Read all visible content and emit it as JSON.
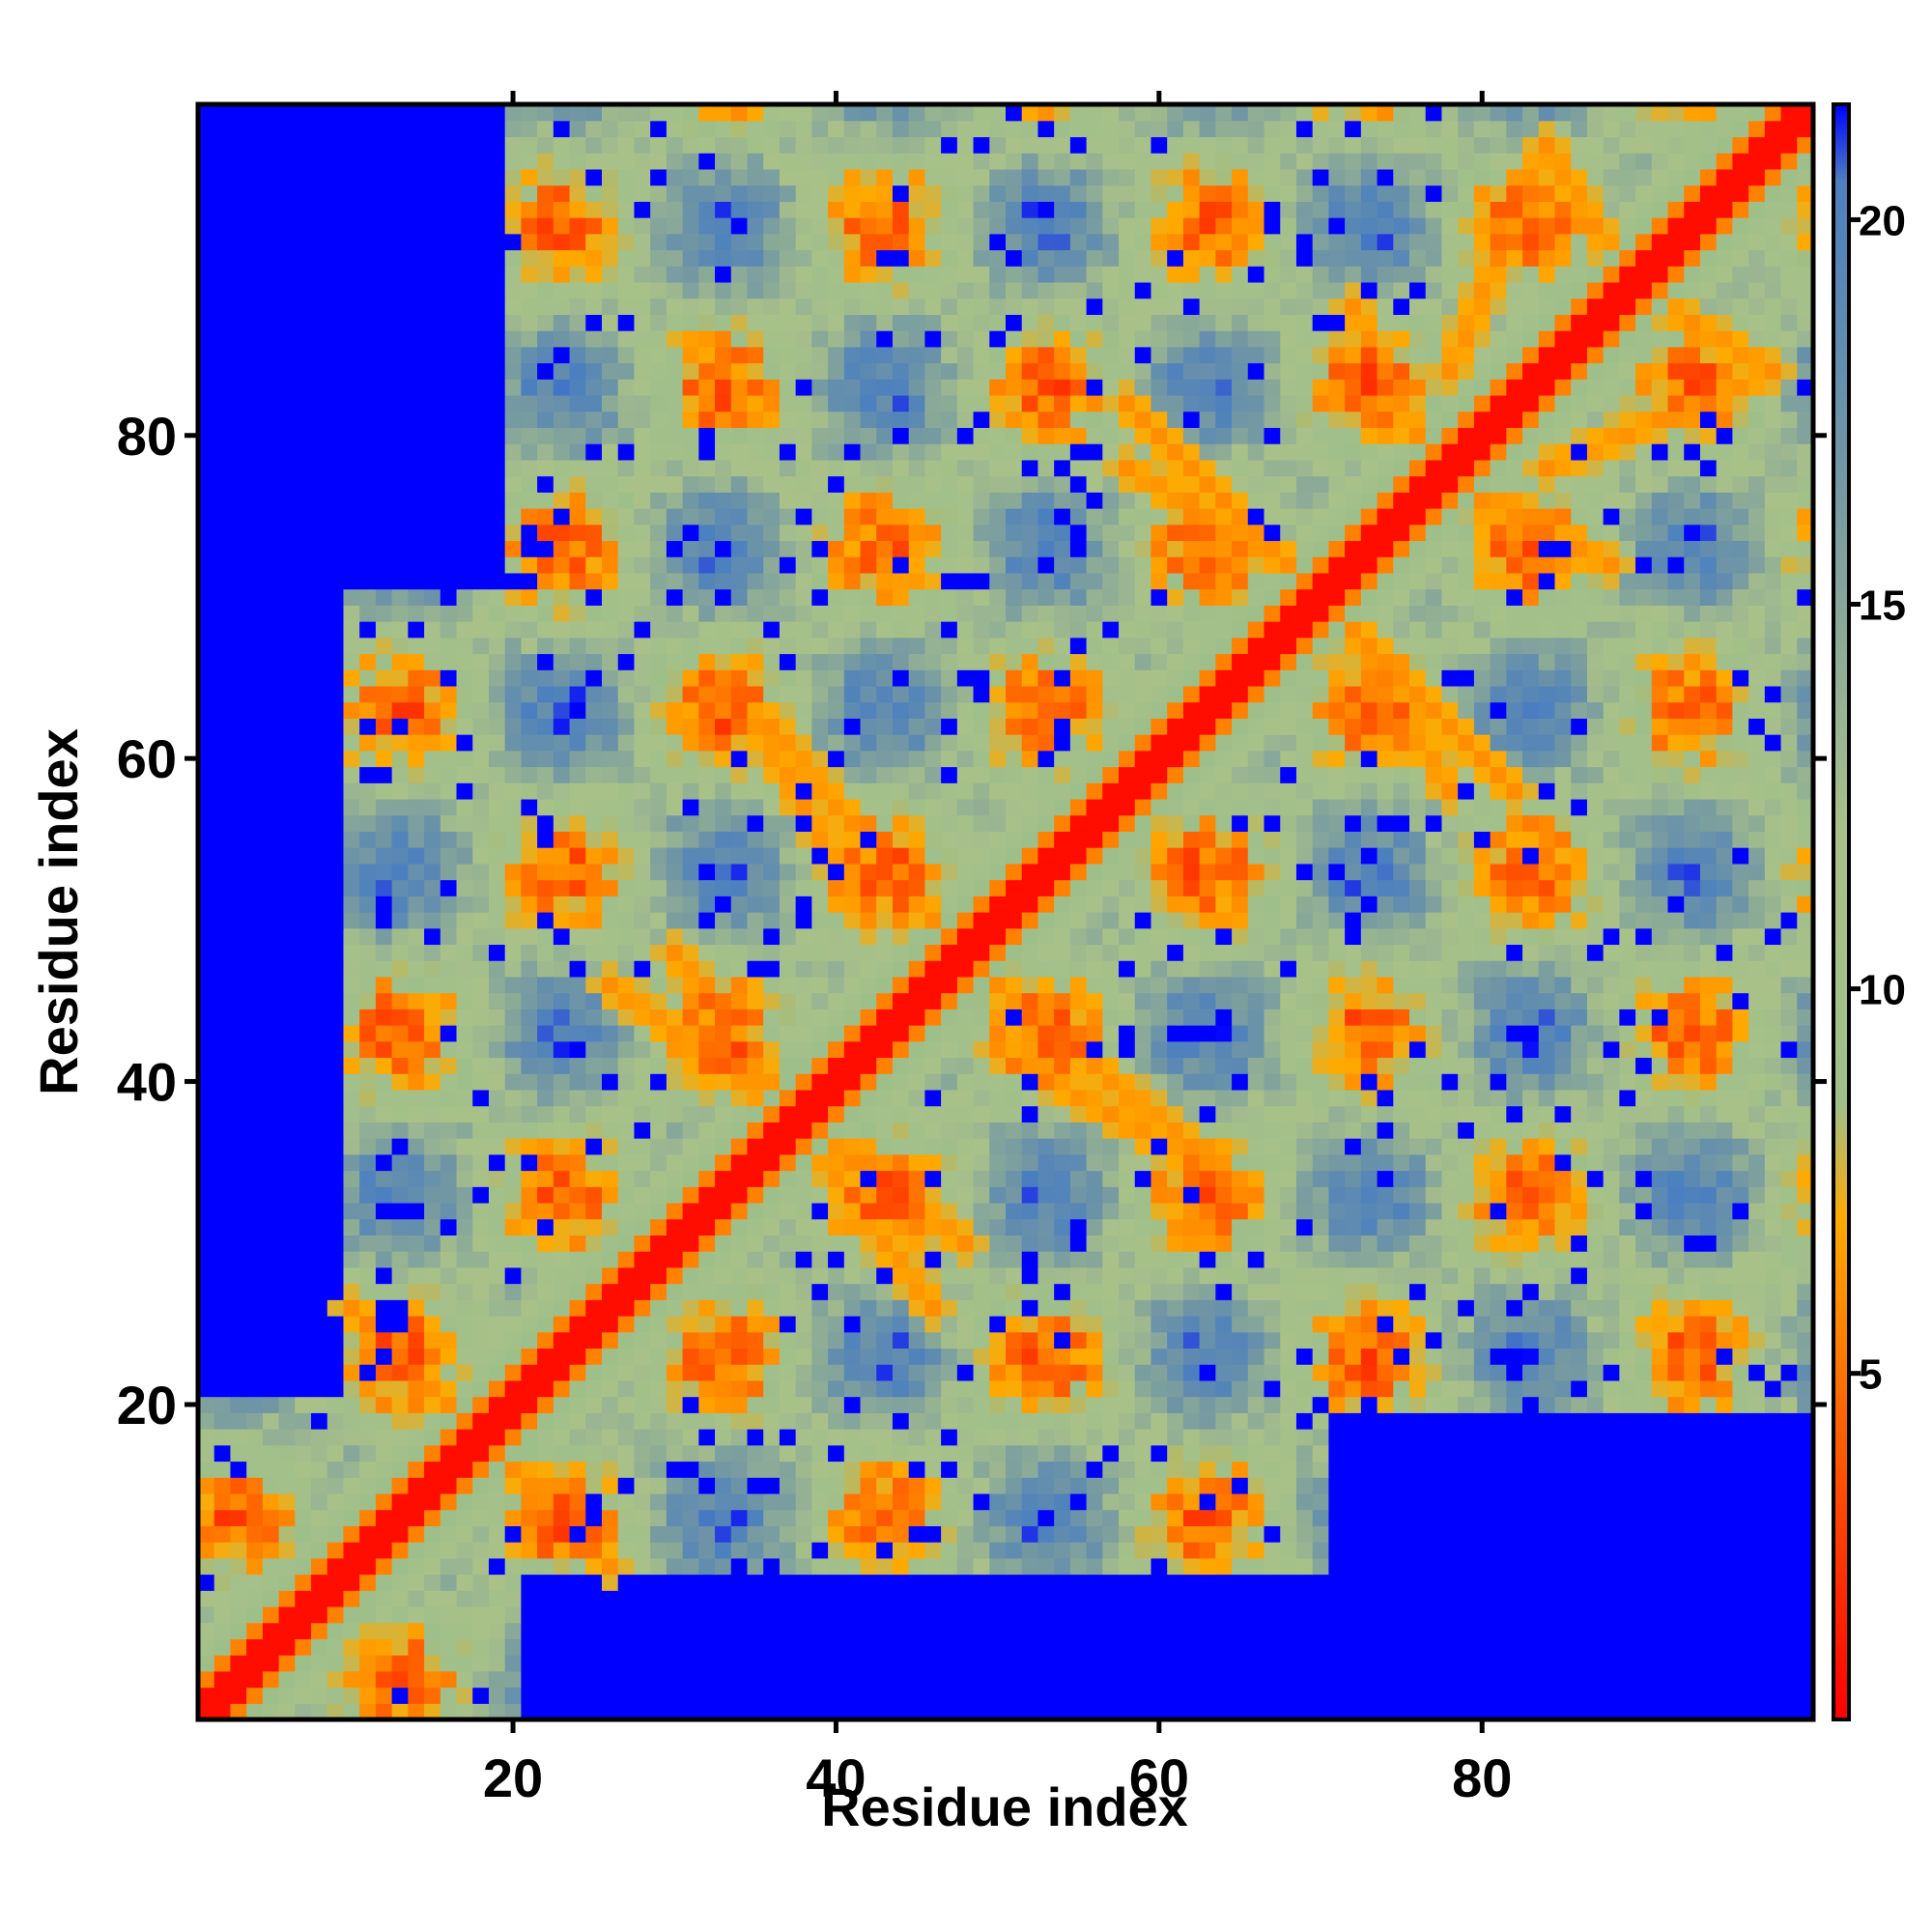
{
  "chart_data": {
    "type": "heatmap",
    "title": "",
    "xlabel": "Residue index",
    "ylabel": "Residue index",
    "xlim": [
      1,
      100
    ],
    "ylim": [
      1,
      100
    ],
    "x_ticks": [
      20,
      40,
      60,
      80
    ],
    "y_ticks": [
      20,
      40,
      60,
      80
    ],
    "colorbar": {
      "ticks": [
        5,
        10,
        15,
        20
      ],
      "range": [
        0.5,
        21.5
      ],
      "stops": [
        {
          "value": 0.5,
          "color": "#ff0000"
        },
        {
          "value": 4.5,
          "color": "#ff6600"
        },
        {
          "value": 7.0,
          "color": "#ffaa00"
        },
        {
          "value": 8.5,
          "color": "#9fbf8a"
        },
        {
          "value": 12.0,
          "color": "#a9c189"
        },
        {
          "value": 17.0,
          "color": "#6f95a5"
        },
        {
          "value": 20.5,
          "color": "#4b7fc0"
        },
        {
          "value": 21.5,
          "color": "#0000ff"
        }
      ]
    },
    "cap_value": 21.5,
    "diagonal_distance": 1.0,
    "secondary_bands": [
      {
        "description": "anti-diagonal contact branch",
        "from": [
          26,
          10
        ],
        "to": [
          10,
          26
        ]
      },
      {
        "from": [
          46,
          26
        ],
        "to": [
          30,
          48
        ]
      },
      {
        "from": [
          50,
          42
        ],
        "to": [
          64,
          34
        ]
      },
      {
        "from": [
          36,
          62
        ],
        "to": [
          46,
          50
        ]
      },
      {
        "from": [
          58,
          82
        ],
        "to": [
          68,
          72
        ]
      },
      {
        "from": [
          72,
          68
        ],
        "to": [
          78,
          58
        ]
      },
      {
        "from": [
          80,
          76
        ],
        "to": [
          88,
          72
        ]
      },
      {
        "from": [
          78,
          84
        ],
        "to": [
          84,
          98
        ]
      },
      {
        "from": [
          88,
          90
        ],
        "to": [
          98,
          84
        ]
      }
    ],
    "notes": "Residue-residue distance map; values near the diagonal are low (red), distant pairs saturate at the top of the color scale (blue)."
  }
}
